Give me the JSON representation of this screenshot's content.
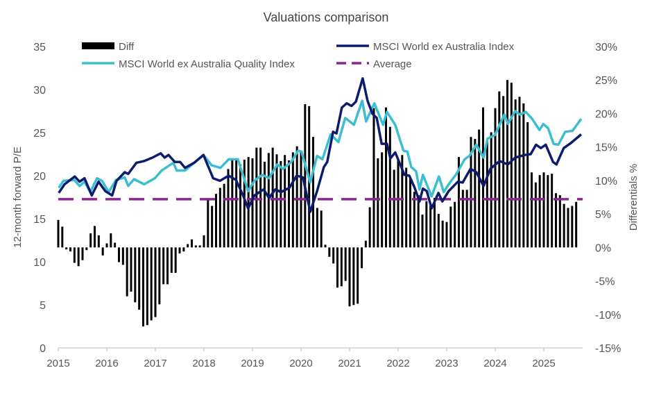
{
  "chart_data": {
    "type": "bar+line",
    "title": "Valuations comparison",
    "ylabel": "12-month forward P/E",
    "ylabel_right": "Differentials %",
    "xlim": [
      2015,
      2025.8
    ],
    "ylim": [
      0,
      35
    ],
    "ylim_right": [
      -15,
      30
    ],
    "x_ticks": [
      "2015",
      "2016",
      "2017",
      "2018",
      "2019",
      "2020",
      "2021",
      "2022",
      "2023",
      "2024",
      "2025"
    ],
    "y_ticks": [
      "0",
      "5",
      "10",
      "15",
      "20",
      "25",
      "30",
      "35"
    ],
    "y_ticks_right": [
      "-15%",
      "-10%",
      "-5%",
      "0%",
      "5%",
      "10%",
      "15%",
      "20%",
      "25%",
      "30%"
    ],
    "grid": false,
    "legend_placement": "top",
    "colors": {
      "diff": "#000000",
      "msci": "#0d1b6e",
      "quality": "#3bbfd0",
      "average": "#8e2391"
    },
    "diff": {
      "name": "Diff",
      "axis": "right",
      "start_month": "2015-01",
      "frequency": "monthly",
      "values": [
        4.1,
        3.1,
        -0.3,
        -0.6,
        -2.3,
        -2.8,
        -1.9,
        -0.4,
        2.1,
        3.2,
        1.8,
        -1.2,
        0.6,
        2.1,
        0.7,
        -2.2,
        -2.6,
        -7.3,
        -6.6,
        -8.2,
        -9.3,
        -11.8,
        -11.6,
        -10.9,
        -10.4,
        -8.5,
        -5.5,
        -5.5,
        -3.8,
        -3.8,
        -0.9,
        -0.6,
        0.5,
        1.2,
        0.3,
        0.3,
        1.8,
        7.1,
        6.2,
        8.0,
        8.9,
        9.5,
        11.7,
        13.3,
        13.3,
        12.4,
        13.1,
        13.5,
        13.3,
        14.9,
        14.9,
        12.8,
        14.1,
        14.9,
        13.9,
        12.9,
        13.8,
        13.0,
        14.2,
        15.1,
        14.2,
        21.4,
        21.1,
        16.5,
        5.9,
        5.5,
        0.4,
        -1.4,
        -2.4,
        -6.0,
        -5.8,
        -5.0,
        -8.8,
        -8.6,
        -8.4,
        -3.1,
        1.0,
        6.0,
        20.8,
        13.3,
        14.2,
        20.9,
        18.0,
        11.6,
        13.0,
        13.8,
        11.9,
        10.4,
        8.3,
        7.8,
        4.9,
        6.9,
        6.3,
        7.4,
        5.0,
        4.0,
        3.8,
        6.1,
        6.8,
        13.5,
        8.6,
        8.6,
        16.5,
        16.2,
        17.6,
        20.9,
        15.9,
        17.2,
        20.8,
        23.3,
        22.6,
        25.0,
        24.6,
        22.1,
        22.5,
        21.5,
        18.7,
        11.2,
        9.7,
        10.8,
        11.2,
        10.8,
        11.0,
        8.1,
        7.8,
        6.5,
        5.9,
        6.2,
        6.8
      ]
    },
    "average": {
      "name": "Average",
      "axis": "right",
      "value": 7.2
    },
    "series": [
      {
        "name": "MSCI World ex Australia Index",
        "axis": "left",
        "points": [
          [
            2015.01,
            18.0
          ],
          [
            2015.13,
            19.0
          ],
          [
            2015.34,
            19.9
          ],
          [
            2015.44,
            19.3
          ],
          [
            2015.54,
            19.7
          ],
          [
            2015.69,
            17.7
          ],
          [
            2015.83,
            19.3
          ],
          [
            2015.97,
            18.2
          ],
          [
            2016.11,
            17.7
          ],
          [
            2016.2,
            19.4
          ],
          [
            2016.37,
            20.4
          ],
          [
            2016.44,
            20.2
          ],
          [
            2016.61,
            21.5
          ],
          [
            2016.77,
            21.7
          ],
          [
            2016.94,
            22.1
          ],
          [
            2017.11,
            22.6
          ],
          [
            2017.19,
            22.1
          ],
          [
            2017.27,
            22.4
          ],
          [
            2017.4,
            21.6
          ],
          [
            2017.51,
            21.6
          ],
          [
            2017.61,
            20.9
          ],
          [
            2017.8,
            21.5
          ],
          [
            2017.99,
            22.4
          ],
          [
            2018.19,
            19.7
          ],
          [
            2018.33,
            19.4
          ],
          [
            2018.51,
            20.0
          ],
          [
            2018.66,
            19.5
          ],
          [
            2018.8,
            17.8
          ],
          [
            2018.91,
            16.2
          ],
          [
            2019.04,
            17.7
          ],
          [
            2019.23,
            18.4
          ],
          [
            2019.34,
            17.4
          ],
          [
            2019.47,
            18.4
          ],
          [
            2019.59,
            18.1
          ],
          [
            2019.76,
            18.6
          ],
          [
            2019.91,
            20.0
          ],
          [
            2020.04,
            19.8
          ],
          [
            2020.19,
            15.8
          ],
          [
            2020.33,
            18.2
          ],
          [
            2020.47,
            21.0
          ],
          [
            2020.54,
            21.6
          ],
          [
            2020.66,
            25.1
          ],
          [
            2020.73,
            24.9
          ],
          [
            2020.84,
            27.9
          ],
          [
            2020.94,
            28.4
          ],
          [
            2021.04,
            28.1
          ],
          [
            2021.13,
            28.6
          ],
          [
            2021.27,
            31.3
          ],
          [
            2021.37,
            28.7
          ],
          [
            2021.47,
            27.2
          ],
          [
            2021.56,
            26.7
          ],
          [
            2021.66,
            23.7
          ],
          [
            2021.77,
            23.7
          ],
          [
            2021.84,
            22.0
          ],
          [
            2021.94,
            22.7
          ],
          [
            2022.13,
            20.1
          ],
          [
            2022.23,
            20.0
          ],
          [
            2022.34,
            18.6
          ],
          [
            2022.44,
            17.0
          ],
          [
            2022.51,
            18.5
          ],
          [
            2022.59,
            18.2
          ],
          [
            2022.69,
            16.2
          ],
          [
            2022.83,
            18.0
          ],
          [
            2022.91,
            17.0
          ],
          [
            2023.04,
            18.2
          ],
          [
            2023.23,
            19.3
          ],
          [
            2023.33,
            19.2
          ],
          [
            2023.49,
            20.8
          ],
          [
            2023.61,
            20.4
          ],
          [
            2023.76,
            18.8
          ],
          [
            2023.9,
            20.8
          ],
          [
            2024.09,
            21.7
          ],
          [
            2024.26,
            21.3
          ],
          [
            2024.41,
            22.1
          ],
          [
            2024.61,
            22.4
          ],
          [
            2024.73,
            22.5
          ],
          [
            2024.84,
            23.6
          ],
          [
            2024.94,
            23.2
          ],
          [
            2025.04,
            23.6
          ],
          [
            2025.19,
            21.6
          ],
          [
            2025.26,
            21.3
          ],
          [
            2025.41,
            23.2
          ],
          [
            2025.56,
            23.8
          ],
          [
            2025.77,
            24.8
          ]
        ]
      },
      {
        "name": "MSCI World ex Australia Quality Index",
        "axis": "left",
        "points": [
          [
            2015.01,
            18.6
          ],
          [
            2015.11,
            19.4
          ],
          [
            2015.33,
            19.5
          ],
          [
            2015.44,
            18.8
          ],
          [
            2015.54,
            19.3
          ],
          [
            2015.66,
            18.1
          ],
          [
            2015.8,
            19.7
          ],
          [
            2015.9,
            19.4
          ],
          [
            2016.04,
            18.1
          ],
          [
            2016.19,
            19.5
          ],
          [
            2016.37,
            19.8
          ],
          [
            2016.44,
            18.8
          ],
          [
            2016.56,
            19.6
          ],
          [
            2016.77,
            19.0
          ],
          [
            2016.99,
            19.7
          ],
          [
            2017.13,
            20.6
          ],
          [
            2017.37,
            21.5
          ],
          [
            2017.44,
            20.6
          ],
          [
            2017.61,
            20.6
          ],
          [
            2017.8,
            21.5
          ],
          [
            2017.99,
            22.4
          ],
          [
            2018.16,
            21.2
          ],
          [
            2018.34,
            20.9
          ],
          [
            2018.51,
            21.9
          ],
          [
            2018.7,
            21.9
          ],
          [
            2018.91,
            18.2
          ],
          [
            2019.04,
            19.4
          ],
          [
            2019.2,
            20.1
          ],
          [
            2019.34,
            19.7
          ],
          [
            2019.51,
            21.3
          ],
          [
            2019.63,
            20.8
          ],
          [
            2019.8,
            21.6
          ],
          [
            2019.94,
            22.9
          ],
          [
            2020.01,
            22.8
          ],
          [
            2020.19,
            19.2
          ],
          [
            2020.33,
            22.3
          ],
          [
            2020.44,
            21.9
          ],
          [
            2020.61,
            24.8
          ],
          [
            2020.77,
            23.9
          ],
          [
            2020.91,
            26.7
          ],
          [
            2021.09,
            25.9
          ],
          [
            2021.26,
            28.7
          ],
          [
            2021.34,
            26.3
          ],
          [
            2021.51,
            28.4
          ],
          [
            2021.69,
            25.9
          ],
          [
            2021.77,
            27.4
          ],
          [
            2021.94,
            25.9
          ],
          [
            2022.11,
            22.9
          ],
          [
            2022.19,
            22.8
          ],
          [
            2022.27,
            21.0
          ],
          [
            2022.37,
            20.5
          ],
          [
            2022.44,
            18.4
          ],
          [
            2022.51,
            20.1
          ],
          [
            2022.69,
            17.6
          ],
          [
            2022.84,
            19.9
          ],
          [
            2022.94,
            18.1
          ],
          [
            2023.04,
            19.0
          ],
          [
            2023.2,
            20.2
          ],
          [
            2023.37,
            21.9
          ],
          [
            2023.47,
            22.3
          ],
          [
            2023.61,
            23.6
          ],
          [
            2023.76,
            22.1
          ],
          [
            2023.84,
            24.3
          ],
          [
            2023.99,
            24.7
          ],
          [
            2024.19,
            27.1
          ],
          [
            2024.26,
            26.0
          ],
          [
            2024.41,
            27.5
          ],
          [
            2024.51,
            27.1
          ],
          [
            2024.63,
            27.4
          ],
          [
            2024.76,
            26.6
          ],
          [
            2024.91,
            25.3
          ],
          [
            2024.99,
            26.0
          ],
          [
            2025.09,
            25.5
          ],
          [
            2025.2,
            23.7
          ],
          [
            2025.3,
            23.6
          ],
          [
            2025.44,
            25.1
          ],
          [
            2025.59,
            25.2
          ],
          [
            2025.77,
            26.6
          ]
        ]
      }
    ]
  }
}
